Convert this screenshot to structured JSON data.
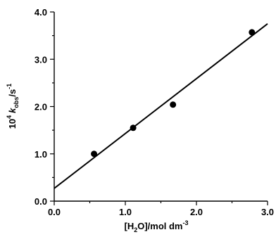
{
  "chart_data": {
    "type": "scatter",
    "xlabel": {
      "open": "[H",
      "sub": "2",
      "rest": "O]/mol dm",
      "sup": "-3"
    },
    "ylabel": {
      "coef": "10",
      "coef_sup": "4",
      "k": "k",
      "k_sub": "obs",
      "unit": "/s",
      "unit_sup": "-1"
    },
    "xlim": [
      0.0,
      3.0
    ],
    "ylim": [
      0.0,
      4.0
    ],
    "x_ticks": [
      "0.0",
      "1.0",
      "2.0",
      "3.0"
    ],
    "y_ticks": [
      "0.0",
      "1.0",
      "2.0",
      "3.0",
      "4.0"
    ],
    "grid": false,
    "series": [
      {
        "x": [
          0.56,
          1.11,
          1.67,
          2.78
        ],
        "y": [
          1.0,
          1.55,
          2.04,
          3.57
        ]
      }
    ],
    "fit_line": {
      "x": [
        0.0,
        3.0
      ],
      "y": [
        0.27,
        3.75
      ]
    }
  }
}
